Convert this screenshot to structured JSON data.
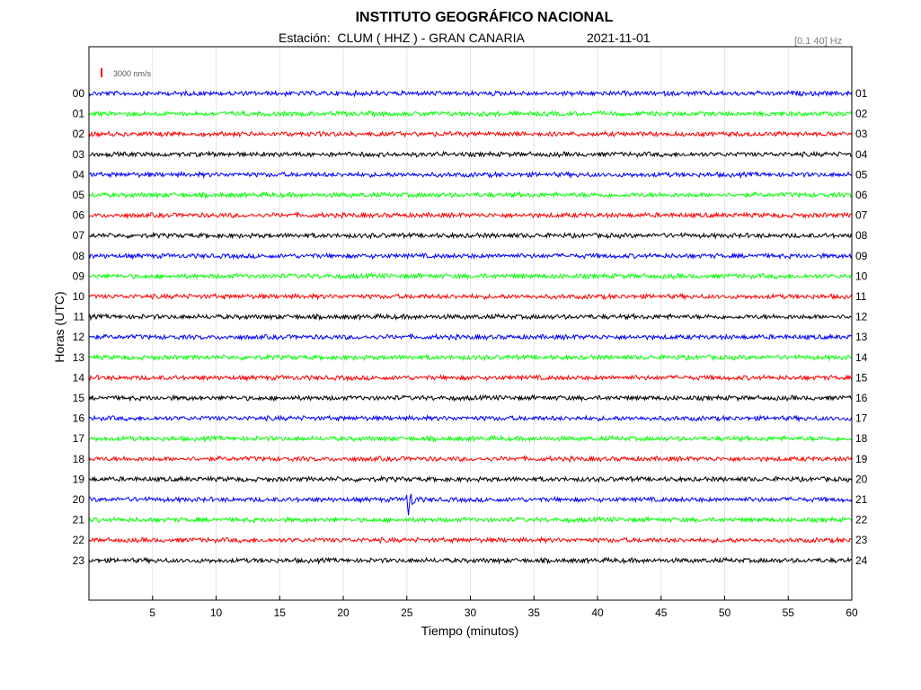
{
  "header": {
    "title": "INSTITUTO GEOGRÁFICO NACIONAL",
    "station_line": "Estación:  CLUM ( HHZ ) - GRAN CANARIA",
    "date": "2021-11-01",
    "filter": "[0.1 40] Hz"
  },
  "chart_data": {
    "type": "line",
    "title": "INSTITUTO GEOGRÁFICO NACIONAL",
    "xlabel": "Tiempo (minutos)",
    "ylabel": "Horas (UTC)",
    "xlim": [
      0,
      60
    ],
    "x_ticks": [
      5,
      10,
      15,
      20,
      25,
      30,
      35,
      40,
      45,
      50,
      55,
      60
    ],
    "scale_bar_label": "3000 nm/s",
    "scale_bar_color": "#ff0000",
    "grid": true,
    "trace_colors": [
      "#0000ff",
      "#00ff00",
      "#ff0000",
      "#000000"
    ],
    "left_labels": [
      "00",
      "01",
      "02",
      "03",
      "04",
      "05",
      "06",
      "07",
      "08",
      "09",
      "10",
      "11",
      "12",
      "13",
      "14",
      "15",
      "16",
      "17",
      "18",
      "19",
      "20",
      "21",
      "22",
      "23"
    ],
    "right_labels": [
      "01",
      "02",
      "03",
      "04",
      "05",
      "06",
      "07",
      "08",
      "09",
      "10",
      "11",
      "12",
      "13",
      "14",
      "15",
      "16",
      "17",
      "18",
      "19",
      "20",
      "21",
      "22",
      "23",
      "24"
    ],
    "events": [
      {
        "hour": "20",
        "minute": 25.1
      }
    ]
  }
}
